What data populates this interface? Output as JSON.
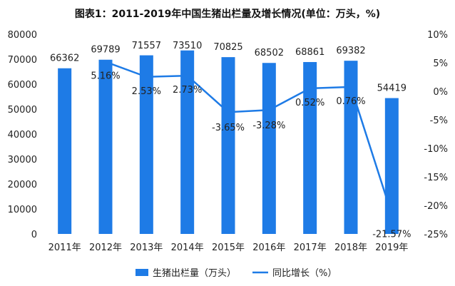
{
  "chart_data": {
    "type": "bar",
    "title": "图表1：2011-2019年中国生猪出栏量及增长情况(单位：万头，%)",
    "categories": [
      "2011年",
      "2012年",
      "2013年",
      "2014年",
      "2015年",
      "2016年",
      "2017年",
      "2018年",
      "2019年"
    ],
    "series": [
      {
        "name": "生猪出栏量（万头）",
        "type": "bar",
        "axis": "left",
        "values": [
          66362,
          69789,
          71557,
          73510,
          70825,
          68502,
          68861,
          69382,
          54419
        ],
        "labels": [
          "66362",
          "69789",
          "71557",
          "73510",
          "70825",
          "68502",
          "68861",
          "69382",
          "54419"
        ],
        "color": "#1e7be6"
      },
      {
        "name": "同比增长（%）",
        "type": "line",
        "axis": "right",
        "values": [
          null,
          5.16,
          2.53,
          2.73,
          -3.65,
          -3.28,
          0.52,
          0.76,
          -21.57
        ],
        "labels": [
          "",
          "5.16%",
          "2.53%",
          "2.73%",
          "-3.65%",
          "-3.28%",
          "0.52%",
          "0.76%",
          "-21.57%"
        ],
        "color": "#1e7be6"
      }
    ],
    "left_axis": {
      "min": 0,
      "max": 80000,
      "ticks": [
        "0",
        "10000",
        "20000",
        "30000",
        "40000",
        "50000",
        "60000",
        "70000",
        "80000"
      ]
    },
    "right_axis": {
      "min": -25,
      "max": 10,
      "ticks": [
        "-25%",
        "-20%",
        "-15%",
        "-10%",
        "-5%",
        "0%",
        "5%",
        "10%"
      ]
    },
    "grid": false,
    "legend_position": "bottom"
  }
}
